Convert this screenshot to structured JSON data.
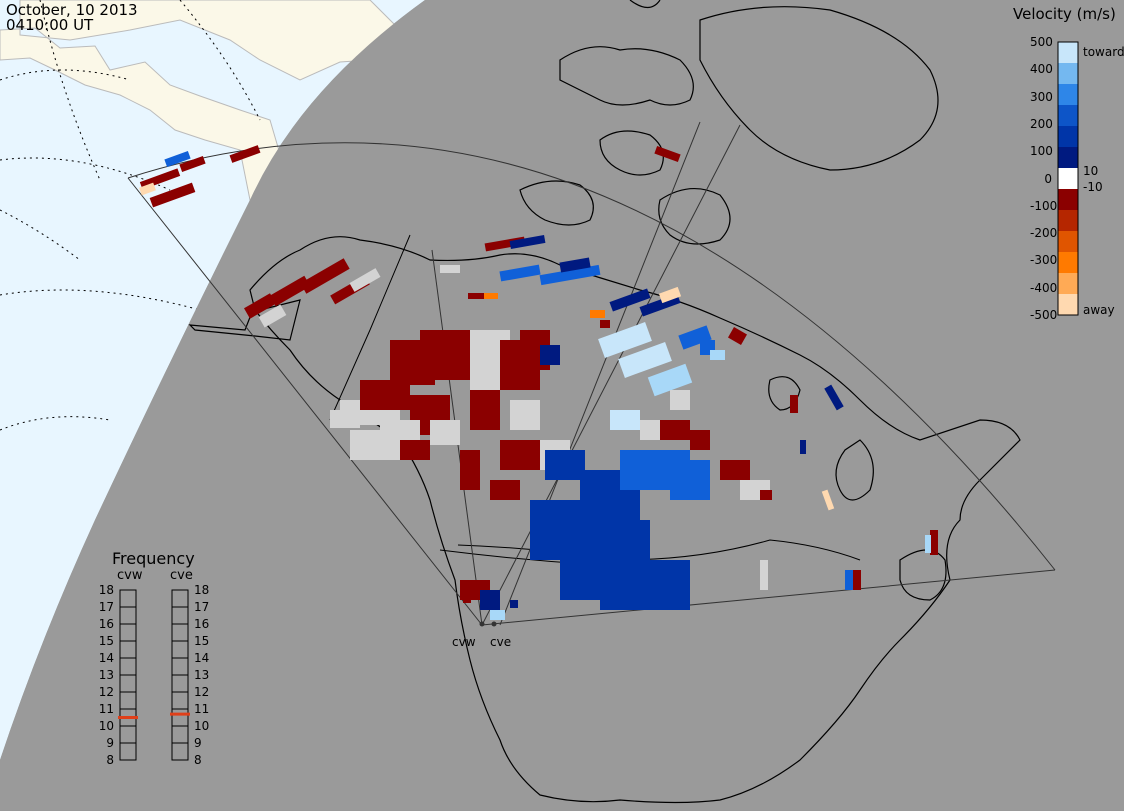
{
  "header": {
    "date": "October, 10 2013",
    "time": "0410:00 UT"
  },
  "velocity_scale": {
    "title": "Velocity (m/s)",
    "ticks": [
      "500",
      "400",
      "300",
      "200",
      "100",
      "0",
      "-100",
      "-200",
      "-300",
      "-400",
      "-500"
    ],
    "inner_ticks": [
      "10",
      "-10"
    ],
    "label_toward": "toward",
    "label_away": "away",
    "colors": [
      "#ffd9b0",
      "#ffaa55",
      "#ff7a00",
      "#e05500",
      "#b52600",
      "#8b0000",
      "#ffffff",
      "#001a80",
      "#0035a8",
      "#0d55c8",
      "#2e86e8",
      "#74b8f0",
      "#c8e6fa"
    ]
  },
  "frequency": {
    "title": "Frequency",
    "radars": [
      "cvw",
      "cve"
    ],
    "ticks": [
      "18",
      "17",
      "16",
      "15",
      "14",
      "13",
      "12",
      "11",
      "10",
      "9",
      "8"
    ],
    "cvw_mhz": 10.5,
    "cve_mhz": 10.7,
    "marker_color": "#e0401a"
  },
  "sites": [
    "cvw",
    "cve"
  ],
  "map_colors": {
    "background": "#999999",
    "night": "#9a9a9a",
    "day_ocean": "#e8f6ff",
    "day_land": "#fbf8e8",
    "coastline": "#000000",
    "range_lines": "#444444"
  }
}
